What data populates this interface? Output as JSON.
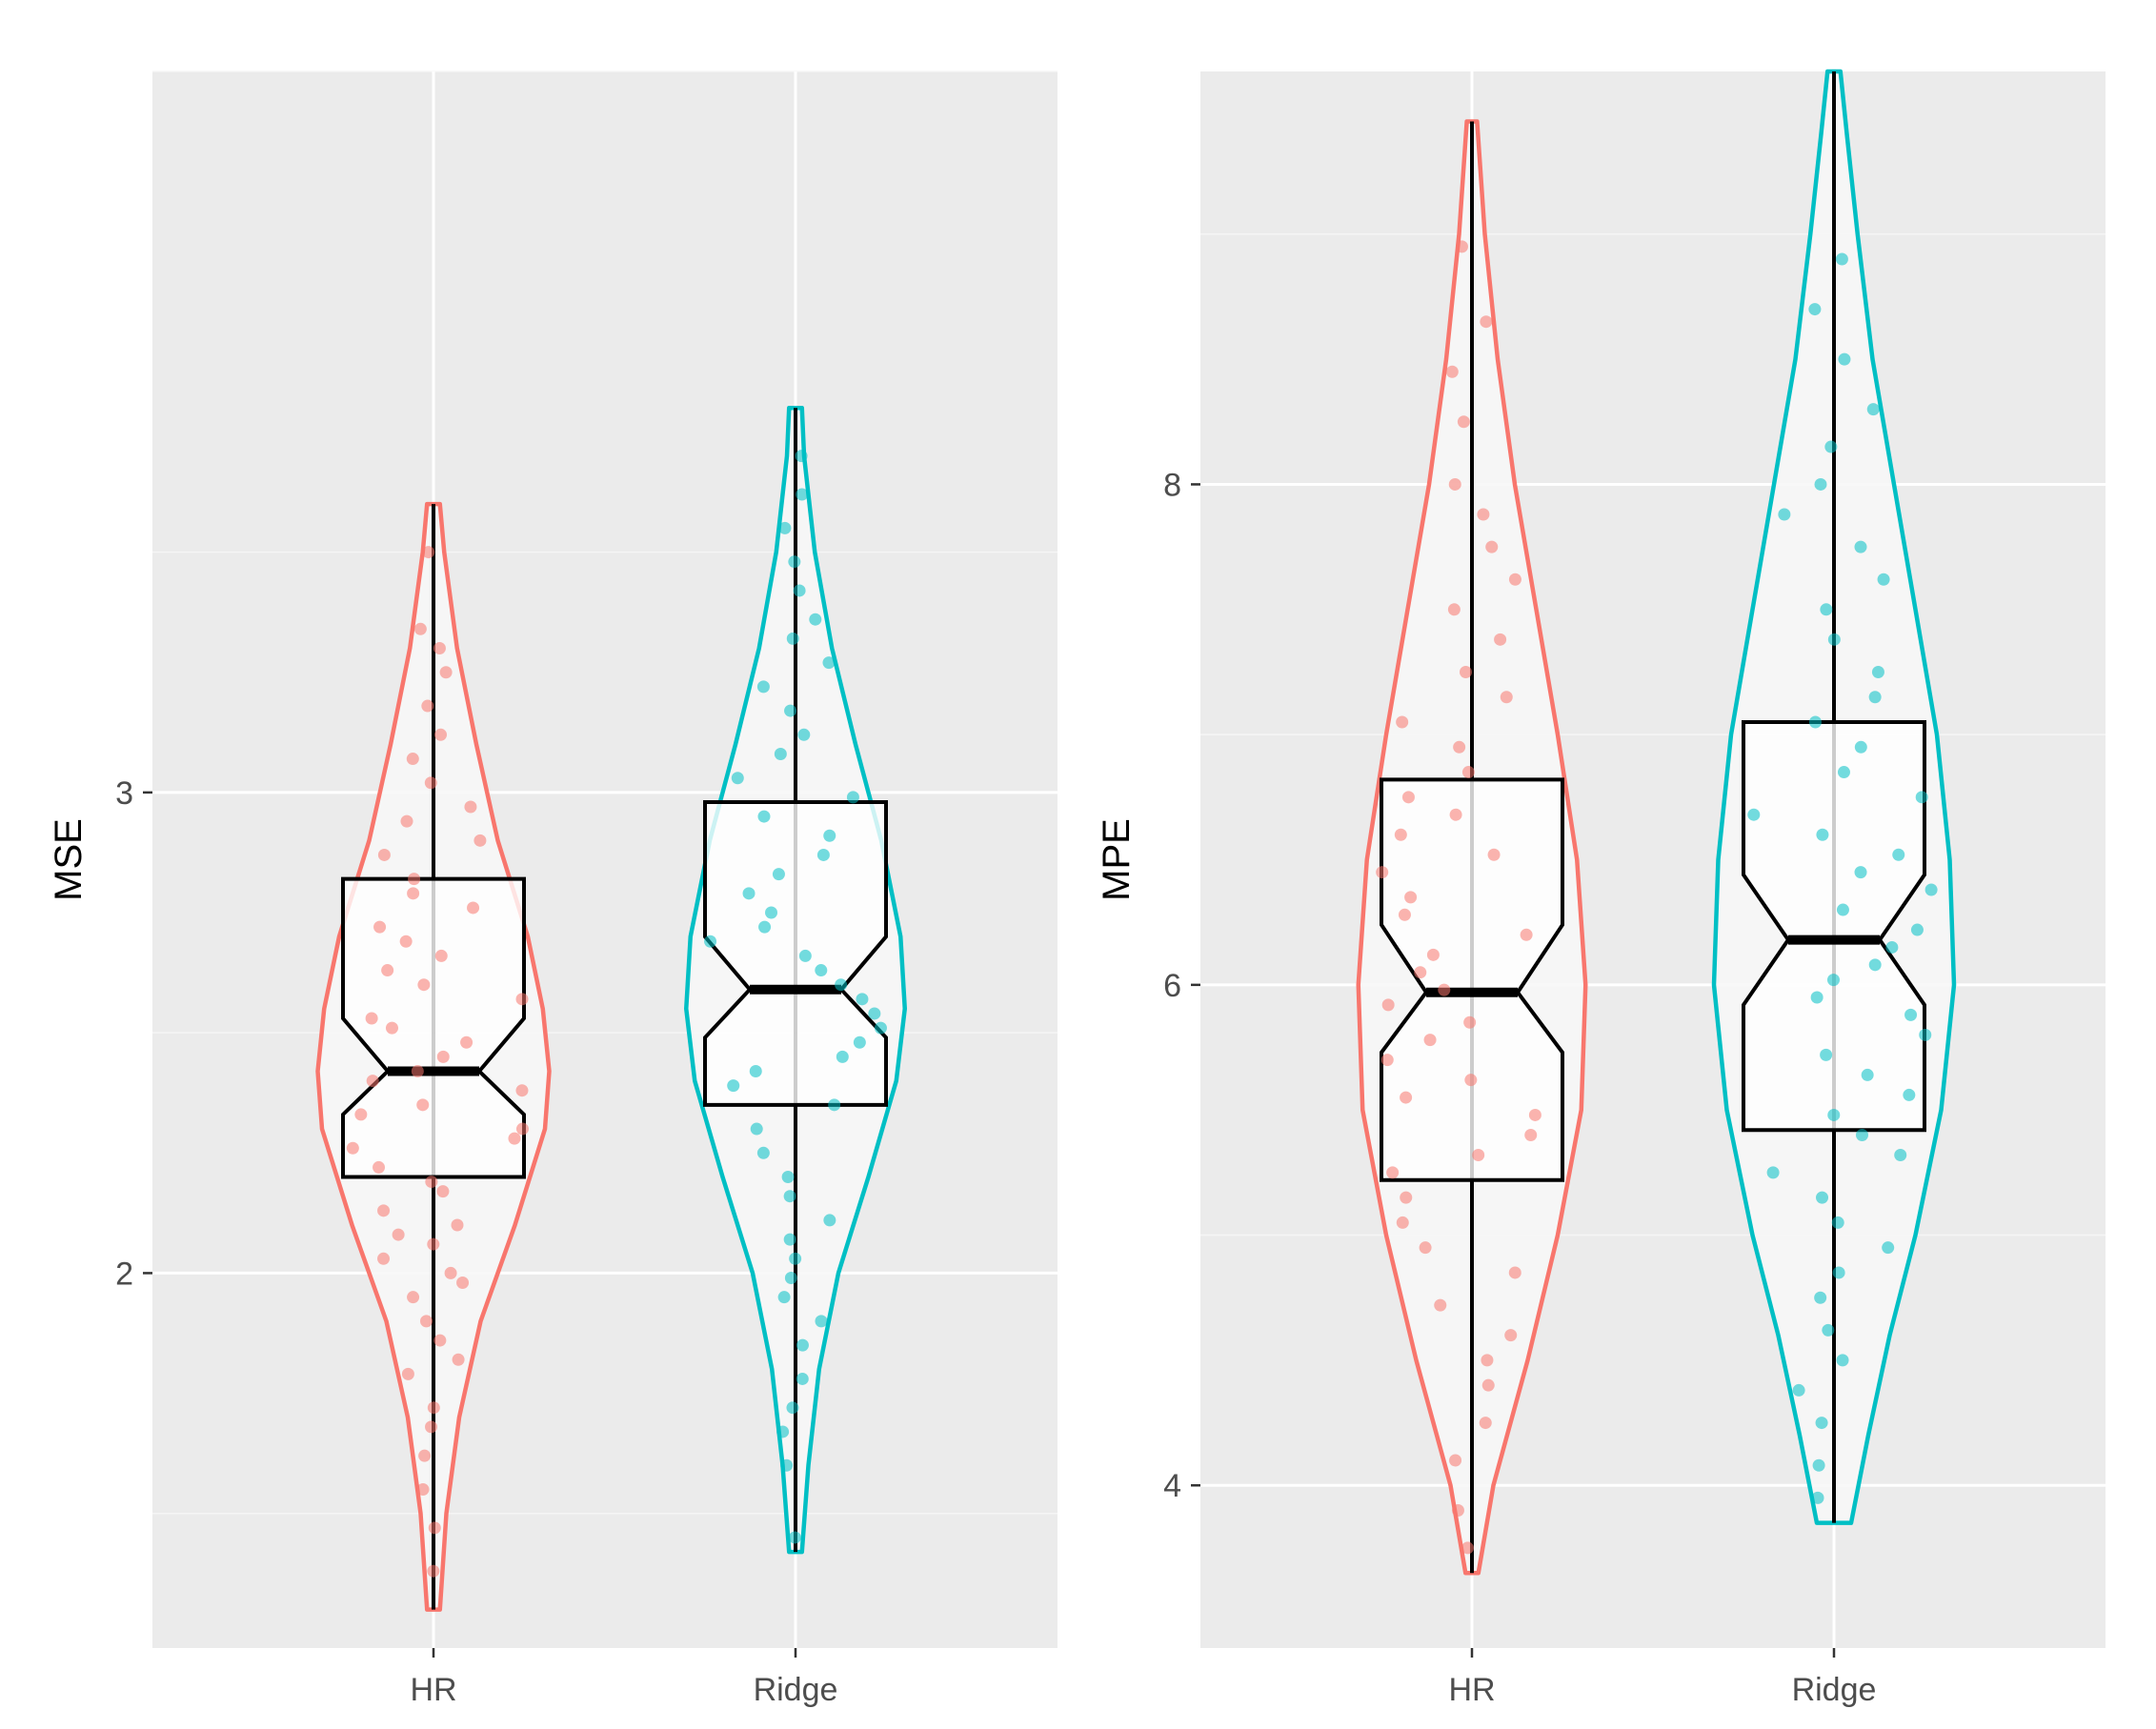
{
  "chart_data": [
    {
      "type": "violin",
      "ylabel": "MSE",
      "xlabel": "",
      "categories": [
        "HR",
        "Ridge"
      ],
      "ylim": [
        1.22,
        4.5
      ],
      "yticks": [
        2,
        3
      ],
      "ytick_labels": [
        "2",
        "3"
      ],
      "grid": true,
      "notched_box": true,
      "series": [
        {
          "name": "HR",
          "color": "#F8766D",
          "min": 1.3,
          "q1": 2.2,
          "median": 2.42,
          "q3": 2.82,
          "max": 3.6,
          "notch_low": 2.33,
          "notch_high": 2.53,
          "density": [
            [
              1.3,
              0.015
            ],
            [
              1.5,
              0.03
            ],
            [
              1.7,
              0.06
            ],
            [
              1.9,
              0.11
            ],
            [
              2.1,
              0.19
            ],
            [
              2.3,
              0.26
            ],
            [
              2.42,
              0.27
            ],
            [
              2.55,
              0.255
            ],
            [
              2.7,
              0.22
            ],
            [
              2.9,
              0.15
            ],
            [
              3.1,
              0.1
            ],
            [
              3.3,
              0.055
            ],
            [
              3.5,
              0.025
            ],
            [
              3.6,
              0.015
            ]
          ],
          "points": [
            1.38,
            1.47,
            1.55,
            1.62,
            1.68,
            1.72,
            1.79,
            1.82,
            1.86,
            1.9,
            1.95,
            1.98,
            2.0,
            2.03,
            2.06,
            2.08,
            2.1,
            2.13,
            2.17,
            2.19,
            2.22,
            2.26,
            2.28,
            2.3,
            2.33,
            2.35,
            2.38,
            2.4,
            2.42,
            2.45,
            2.48,
            2.51,
            2.53,
            2.57,
            2.6,
            2.63,
            2.66,
            2.69,
            2.72,
            2.76,
            2.79,
            2.82,
            2.87,
            2.9,
            2.94,
            2.97,
            3.02,
            3.07,
            3.12,
            3.18,
            3.25,
            3.3,
            3.34,
            3.5
          ]
        },
        {
          "name": "Ridge",
          "color": "#00BFC4",
          "min": 1.42,
          "q1": 2.35,
          "median": 2.59,
          "q3": 2.98,
          "max": 3.8,
          "notch_low": 2.49,
          "notch_high": 2.7,
          "density": [
            [
              1.42,
              0.015
            ],
            [
              1.6,
              0.03
            ],
            [
              1.8,
              0.055
            ],
            [
              2.0,
              0.1
            ],
            [
              2.2,
              0.17
            ],
            [
              2.4,
              0.235
            ],
            [
              2.55,
              0.255
            ],
            [
              2.7,
              0.245
            ],
            [
              2.9,
              0.2
            ],
            [
              3.1,
              0.14
            ],
            [
              3.3,
              0.085
            ],
            [
              3.5,
              0.045
            ],
            [
              3.7,
              0.02
            ],
            [
              3.8,
              0.015
            ]
          ],
          "points": [
            1.45,
            1.6,
            1.67,
            1.72,
            1.78,
            1.85,
            1.9,
            1.95,
            1.99,
            2.03,
            2.07,
            2.11,
            2.16,
            2.2,
            2.25,
            2.3,
            2.35,
            2.39,
            2.42,
            2.45,
            2.48,
            2.51,
            2.54,
            2.57,
            2.6,
            2.63,
            2.66,
            2.69,
            2.72,
            2.75,
            2.79,
            2.83,
            2.87,
            2.91,
            2.95,
            2.99,
            3.03,
            3.08,
            3.12,
            3.17,
            3.22,
            3.27,
            3.32,
            3.36,
            3.42,
            3.48,
            3.55,
            3.62,
            3.7
          ]
        }
      ]
    },
    {
      "type": "violin",
      "ylabel": "MPE",
      "xlabel": "",
      "categories": [
        "HR",
        "Ridge"
      ],
      "ylim": [
        3.35,
        9.65
      ],
      "yticks": [
        4,
        6,
        8
      ],
      "ytick_labels": [
        "4",
        "6",
        "8"
      ],
      "grid": true,
      "notched_box": true,
      "series": [
        {
          "name": "HR",
          "color": "#F8766D",
          "min": 3.65,
          "q1": 5.22,
          "median": 5.97,
          "q3": 6.82,
          "max": 9.45,
          "notch_low": 5.73,
          "notch_high": 6.24,
          "density": [
            [
              3.65,
              0.015
            ],
            [
              4.0,
              0.05
            ],
            [
              4.5,
              0.13
            ],
            [
              5.0,
              0.2
            ],
            [
              5.5,
              0.255
            ],
            [
              6.0,
              0.265
            ],
            [
              6.5,
              0.245
            ],
            [
              7.0,
              0.2
            ],
            [
              7.5,
              0.15
            ],
            [
              8.0,
              0.1
            ],
            [
              8.5,
              0.06
            ],
            [
              9.0,
              0.03
            ],
            [
              9.45,
              0.012
            ]
          ],
          "points": [
            3.75,
            3.9,
            4.1,
            4.25,
            4.4,
            4.5,
            4.6,
            4.72,
            4.85,
            4.95,
            5.05,
            5.15,
            5.25,
            5.32,
            5.4,
            5.48,
            5.55,
            5.62,
            5.7,
            5.78,
            5.85,
            5.92,
            5.98,
            6.05,
            6.12,
            6.2,
            6.28,
            6.35,
            6.45,
            6.52,
            6.6,
            6.68,
            6.75,
            6.85,
            6.95,
            7.05,
            7.15,
            7.25,
            7.38,
            7.5,
            7.62,
            7.75,
            7.88,
            8.0,
            8.25,
            8.45,
            8.65,
            8.95
          ]
        },
        {
          "name": "Ridge",
          "color": "#00BFC4",
          "min": 3.85,
          "q1": 5.42,
          "median": 6.18,
          "q3": 7.05,
          "max": 9.65,
          "notch_low": 5.92,
          "notch_high": 6.44,
          "density": [
            [
              3.85,
              0.04
            ],
            [
              4.2,
              0.08
            ],
            [
              4.6,
              0.13
            ],
            [
              5.0,
              0.19
            ],
            [
              5.5,
              0.25
            ],
            [
              6.0,
              0.28
            ],
            [
              6.5,
              0.27
            ],
            [
              7.0,
              0.24
            ],
            [
              7.5,
              0.19
            ],
            [
              8.0,
              0.14
            ],
            [
              8.5,
              0.09
            ],
            [
              9.0,
              0.055
            ],
            [
              9.4,
              0.03
            ],
            [
              9.65,
              0.015
            ]
          ],
          "points": [
            3.95,
            4.08,
            4.25,
            4.38,
            4.5,
            4.62,
            4.75,
            4.85,
            4.95,
            5.05,
            5.15,
            5.25,
            5.32,
            5.4,
            5.48,
            5.56,
            5.64,
            5.72,
            5.8,
            5.88,
            5.95,
            6.02,
            6.08,
            6.15,
            6.22,
            6.3,
            6.38,
            6.45,
            6.52,
            6.6,
            6.68,
            6.75,
            6.85,
            6.95,
            7.05,
            7.15,
            7.25,
            7.38,
            7.5,
            7.62,
            7.75,
            7.88,
            8.0,
            8.15,
            8.3,
            8.5,
            8.7,
            8.9
          ]
        }
      ]
    }
  ]
}
